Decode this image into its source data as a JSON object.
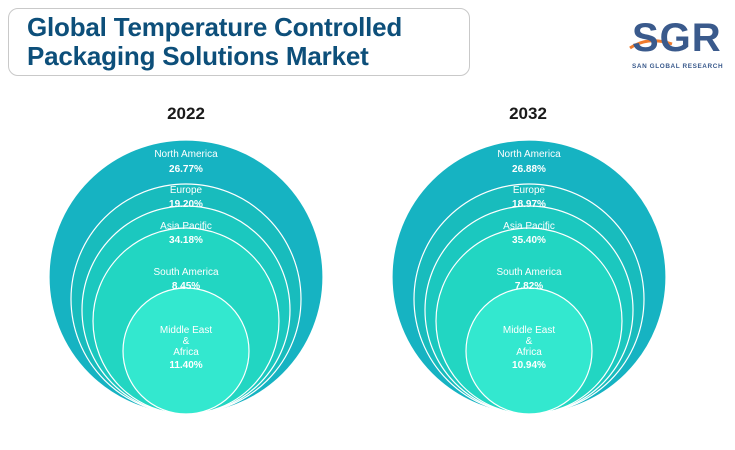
{
  "header": {
    "title_line1": "Global Temperature Controlled",
    "title_line2": "Packaging Solutions Market"
  },
  "logo": {
    "mark": "SGR",
    "subtitle": "SAN GLOBAL RESEARCH",
    "icon": "sgr-logo-icon"
  },
  "colors": {
    "title": "#0d4f7a",
    "rings": [
      "#16b3c2",
      "#18bcbd",
      "#1bc8bf",
      "#22d6c2",
      "#33e8cf"
    ],
    "ring_stroke": "#ffffff"
  },
  "chart_data": [
    {
      "type": "pie",
      "style": "nested-circles",
      "title": "2022",
      "categories": [
        "North America",
        "Europe",
        "Asia Pacific",
        "South America",
        [
          "Middle East",
          "&",
          "Africa"
        ]
      ],
      "values": [
        26.77,
        19.2,
        34.18,
        8.45,
        11.4
      ],
      "value_labels": [
        "26.77%",
        "19.20%",
        "34.18%",
        "8.45%",
        "11.40%"
      ]
    },
    {
      "type": "pie",
      "style": "nested-circles",
      "title": "2032",
      "categories": [
        "North America",
        "Europe",
        "Asia Pacific",
        "South America",
        [
          "Middle East",
          "&",
          "Africa"
        ]
      ],
      "values": [
        26.88,
        18.97,
        35.4,
        7.82,
        10.94
      ],
      "value_labels": [
        "26.88%",
        "18.97%",
        "35.40%",
        "7.82%",
        "10.94%"
      ]
    }
  ]
}
